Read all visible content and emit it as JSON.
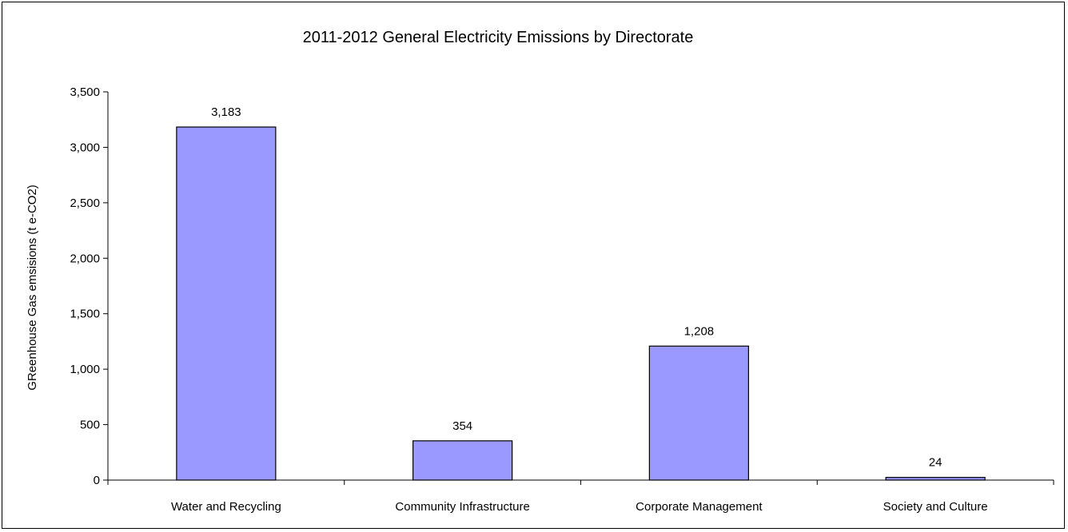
{
  "chart_data": {
    "type": "bar",
    "title": "2011-2012 General Electricity Emissions by Directorate",
    "xlabel": "",
    "ylabel": "GReenhouse Gas emsisions (t e-CO2)",
    "categories": [
      "Water and Recycling",
      "Community Infrastructure",
      "Corporate Management",
      "Society and Culture"
    ],
    "values": [
      3183,
      354,
      1208,
      24
    ],
    "data_labels": [
      "3,183",
      "354",
      "1,208",
      "24"
    ],
    "ylim": [
      0,
      3500
    ],
    "yticks": [
      0,
      500,
      1000,
      1500,
      2000,
      2500,
      3000,
      3500
    ],
    "ytick_labels": [
      "0",
      "500",
      "1,000",
      "1,500",
      "2,000",
      "2,500",
      "3,000",
      "3,500"
    ],
    "grid": false,
    "legend": "none",
    "bar_color": "#9999ff",
    "bar_edge_color": "#000000"
  }
}
